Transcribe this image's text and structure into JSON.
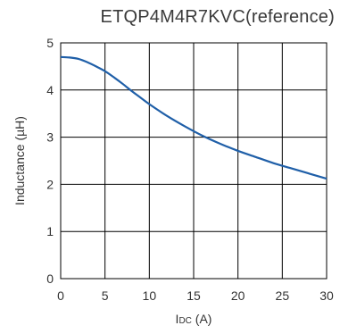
{
  "chart_data": {
    "type": "line",
    "title": "ETQP4M4R7KVC(reference)",
    "xlabel_main": "I",
    "xlabel_sub": "DC",
    "xlabel_unit": " (A)",
    "ylabel": "Inductance (µH)",
    "xlim": [
      0,
      30
    ],
    "ylim": [
      0,
      5
    ],
    "xticks": [
      "0",
      "5",
      "10",
      "15",
      "20",
      "25",
      "30"
    ],
    "yticks": [
      "0",
      "1",
      "2",
      "3",
      "4",
      "5"
    ],
    "grid": true,
    "legend": "none",
    "series": [
      {
        "color": "#1f5fa8",
        "x": [
          0,
          1,
          2,
          3,
          4,
          5,
          6,
          7,
          8,
          9,
          10,
          12,
          14,
          16,
          18,
          20,
          22,
          24,
          26,
          28,
          30
        ],
        "y": [
          4.7,
          4.69,
          4.66,
          4.59,
          4.5,
          4.4,
          4.27,
          4.13,
          3.98,
          3.84,
          3.7,
          3.45,
          3.23,
          3.03,
          2.86,
          2.71,
          2.58,
          2.45,
          2.34,
          2.23,
          2.12
        ]
      }
    ]
  }
}
